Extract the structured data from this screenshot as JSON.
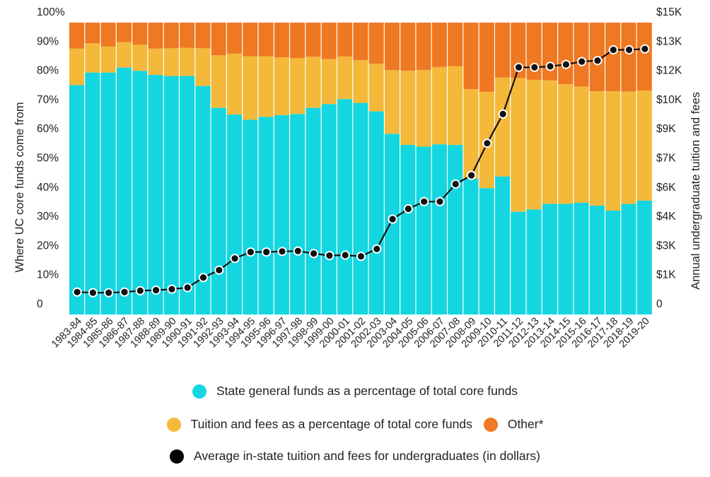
{
  "chart_data": {
    "type": "bar",
    "stacked": true,
    "categories": [
      "1983-84",
      "1984-85",
      "1985-86",
      "1986-87",
      "1987-88",
      "1988-89",
      "1989-90",
      "1990-91",
      "1991-92",
      "1992-93",
      "1993-94",
      "1994-95",
      "1995-96",
      "1996-97",
      "1997-98",
      "1998-99",
      "1999-00",
      "2000-01",
      "2001-02",
      "2002-03",
      "2003-04",
      "2004-05",
      "2005-06",
      "2006-07",
      "2007-08",
      "2008-09",
      "2009-10",
      "2010-11",
      "2011-12",
      "2012-13",
      "2013-14",
      "2014-15",
      "2015-16",
      "2016-17",
      "2017-18",
      "2018-19",
      "2019-20"
    ],
    "series": [
      {
        "name": "State general funds as a percentage of total core funds",
        "color": "#14d6e0",
        "axis": "left",
        "values": [
          78.6,
          82.9,
          82.9,
          84.6,
          83.5,
          82.1,
          81.7,
          81.7,
          78.3,
          70.8,
          68.5,
          66.7,
          67.7,
          68.3,
          68.7,
          70.8,
          72.1,
          73.8,
          72.5,
          69.6,
          61.9,
          58.1,
          57.5,
          58.3,
          58.1,
          46.5,
          43.3,
          47.3,
          35.2,
          36.0,
          37.9,
          37.9,
          38.3,
          37.3,
          35.6,
          37.9,
          39.0
        ]
      },
      {
        "name": "Tuition and fees as a percentage of total core funds",
        "color": "#f4b93a",
        "axis": "left",
        "values": [
          12.5,
          10.0,
          8.9,
          8.7,
          8.9,
          9.0,
          9.5,
          9.7,
          12.9,
          18.0,
          20.8,
          21.8,
          20.8,
          19.8,
          19.1,
          17.5,
          15.4,
          14.6,
          14.6,
          16.3,
          21.8,
          25.4,
          26.3,
          26.5,
          27.0,
          30.7,
          33.0,
          33.9,
          45.8,
          44.4,
          42.3,
          41.0,
          39.8,
          39.2,
          40.9,
          38.5,
          37.7
        ]
      },
      {
        "name": "Other*",
        "color": "#ef7822",
        "axis": "left",
        "values": [
          8.9,
          7.1,
          8.2,
          6.7,
          7.6,
          8.9,
          8.8,
          8.6,
          8.8,
          11.2,
          10.7,
          11.5,
          11.5,
          11.9,
          12.2,
          11.7,
          12.5,
          11.6,
          12.9,
          14.1,
          16.3,
          16.5,
          16.2,
          15.2,
          14.9,
          22.8,
          23.7,
          18.8,
          19.0,
          19.6,
          19.8,
          21.1,
          21.9,
          23.5,
          23.5,
          23.6,
          23.3
        ]
      },
      {
        "name": "Average in-state tuition and fees for undergraduates (in dollars)",
        "type": "line",
        "color": "#000000",
        "axis": "right",
        "values": [
          1150,
          1120,
          1120,
          1150,
          1220,
          1250,
          1300,
          1380,
          1900,
          2280,
          2880,
          3210,
          3210,
          3240,
          3260,
          3130,
          3030,
          3050,
          2990,
          3370,
          4900,
          5430,
          5800,
          5800,
          6700,
          7150,
          8800,
          10300,
          12700,
          12700,
          12750,
          12850,
          13000,
          13050,
          13600,
          13600,
          13650
        ]
      }
    ],
    "y_left": {
      "label": "Where UC core funds come from",
      "ticks": [
        "0",
        "10%",
        "20%",
        "30%",
        "40%",
        "50%",
        "60%",
        "70%",
        "80%",
        "90%",
        "100%"
      ],
      "ylim": [
        0,
        100
      ]
    },
    "y_right": {
      "label": "Annual undergraduate tuition and fees",
      "ticks": [
        "0",
        "$1K",
        "$3K",
        "$4K",
        "$6K",
        "$7K",
        "$9K",
        "$10K",
        "$12K",
        "$13K",
        "$15K"
      ],
      "ylim": [
        0,
        15000
      ]
    },
    "xlabel": "",
    "title": "",
    "legend_position": "bottom",
    "grid": false
  },
  "legend": [
    {
      "label": "State general funds as a percentage of total core funds",
      "color": "#14d6e0"
    },
    {
      "label": "Tuition and fees as a percentage of total core funds",
      "color": "#f4b93a"
    },
    {
      "label": "Other*",
      "color": "#ef7822"
    },
    {
      "label": "Average in-state tuition and fees for undergraduates (in dollars)",
      "color": "#000000"
    }
  ]
}
